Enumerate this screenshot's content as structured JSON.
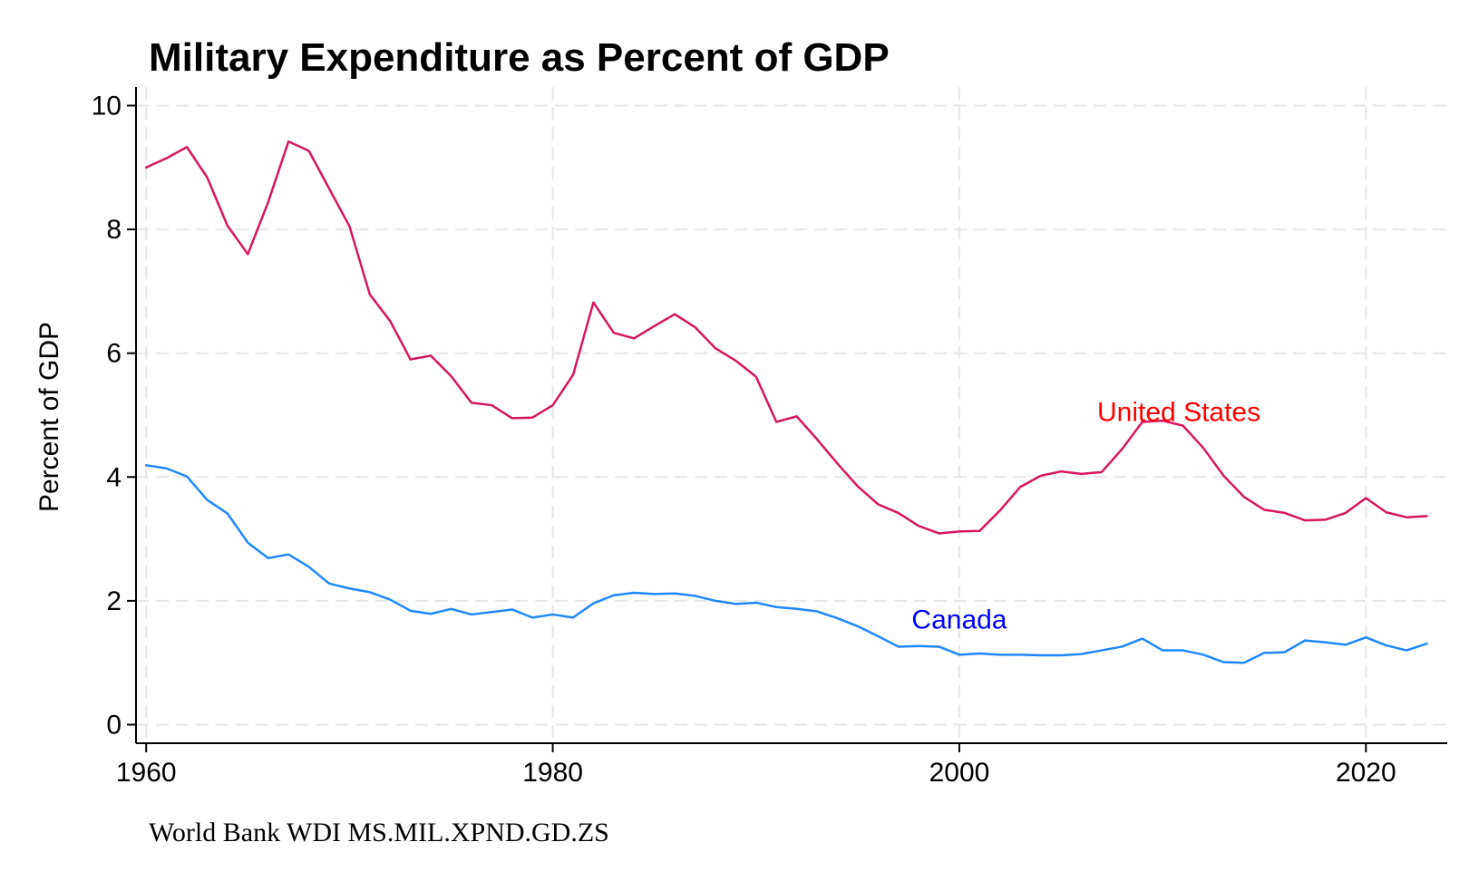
{
  "chart_data": {
    "type": "line",
    "title": "Military Expenditure as Percent of GDP",
    "xlabel": "",
    "ylabel": "Percent of GDP",
    "xlim": [
      1959.5,
      2024
    ],
    "ylim": [
      -0.3,
      10.3
    ],
    "x_ticks": [
      1960,
      1980,
      2000,
      2020
    ],
    "y_ticks": [
      0,
      2,
      4,
      6,
      8,
      10
    ],
    "grid": true,
    "note": "World Bank WDI MS.MIL.XPND.GD.ZS",
    "x": [
      1960,
      1961,
      1962,
      1963,
      1964,
      1965,
      1966,
      1967,
      1968,
      1969,
      1970,
      1971,
      1972,
      1973,
      1974,
      1975,
      1976,
      1977,
      1978,
      1979,
      1980,
      1981,
      1982,
      1983,
      1984,
      1985,
      1986,
      1987,
      1988,
      1989,
      1990,
      1991,
      1992,
      1993,
      1994,
      1995,
      1996,
      1997,
      1998,
      1999,
      2000,
      2001,
      2002,
      2003,
      2004,
      2005,
      2006,
      2007,
      2008,
      2009,
      2010,
      2011,
      2012,
      2013,
      2014,
      2015,
      2016,
      2017,
      2018,
      2019,
      2020,
      2021,
      2022,
      2023
    ],
    "series": [
      {
        "name": "United States",
        "label_anchor": [
          2010.8,
          5.05
        ],
        "color": "#d6165f",
        "label_color": "#ff0000",
        "values": [
          9.0,
          9.15,
          9.33,
          8.84,
          8.06,
          7.6,
          8.44,
          9.42,
          9.27,
          8.66,
          8.05,
          6.95,
          6.52,
          5.9,
          5.96,
          5.63,
          5.2,
          5.16,
          4.95,
          4.96,
          5.16,
          5.65,
          6.82,
          6.33,
          6.24,
          6.44,
          6.63,
          6.42,
          6.08,
          5.88,
          5.62,
          4.89,
          4.98,
          4.61,
          4.22,
          3.85,
          3.56,
          3.42,
          3.21,
          3.09,
          3.12,
          3.13,
          3.46,
          3.84,
          4.02,
          4.09,
          4.05,
          4.08,
          4.45,
          4.89,
          4.91,
          4.83,
          4.47,
          4.02,
          3.68,
          3.47,
          3.42,
          3.3,
          3.31,
          3.42,
          3.66,
          3.43,
          3.35,
          3.37
        ]
      },
      {
        "name": "Canada",
        "label_anchor": [
          2000.0,
          1.7
        ],
        "color": "#1e88ff",
        "label_color": "#0000ff",
        "values": [
          4.19,
          4.14,
          4.01,
          3.63,
          3.41,
          2.94,
          2.69,
          2.75,
          2.55,
          2.28,
          2.2,
          2.14,
          2.02,
          1.84,
          1.79,
          1.87,
          1.78,
          1.82,
          1.86,
          1.73,
          1.78,
          1.73,
          1.96,
          2.09,
          2.13,
          2.11,
          2.12,
          2.08,
          2.0,
          1.95,
          1.97,
          1.9,
          1.87,
          1.83,
          1.72,
          1.59,
          1.43,
          1.26,
          1.27,
          1.26,
          1.13,
          1.15,
          1.13,
          1.13,
          1.12,
          1.12,
          1.14,
          1.2,
          1.26,
          1.39,
          1.2,
          1.2,
          1.13,
          1.01,
          1.0,
          1.16,
          1.17,
          1.36,
          1.33,
          1.29,
          1.41,
          1.28,
          1.2,
          1.31
        ]
      }
    ]
  }
}
